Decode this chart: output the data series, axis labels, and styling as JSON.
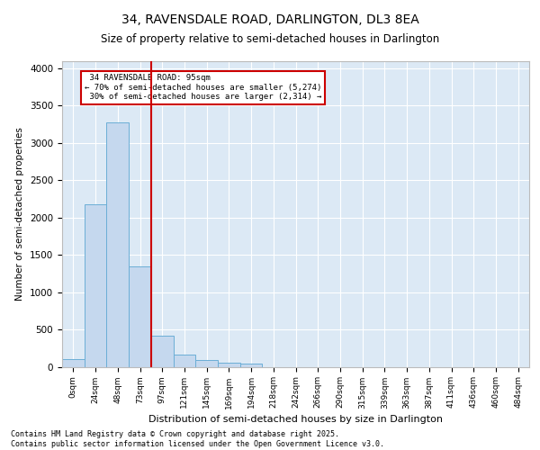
{
  "title": "34, RAVENSDALE ROAD, DARLINGTON, DL3 8EA",
  "subtitle": "Size of property relative to semi-detached houses in Darlington",
  "xlabel": "Distribution of semi-detached houses by size in Darlington",
  "ylabel": "Number of semi-detached properties",
  "bar_labels": [
    "0sqm",
    "24sqm",
    "48sqm",
    "73sqm",
    "97sqm",
    "121sqm",
    "145sqm",
    "169sqm",
    "194sqm",
    "218sqm",
    "242sqm",
    "266sqm",
    "290sqm",
    "315sqm",
    "339sqm",
    "363sqm",
    "387sqm",
    "411sqm",
    "436sqm",
    "460sqm",
    "484sqm"
  ],
  "bar_values": [
    100,
    2175,
    3280,
    1340,
    415,
    160,
    90,
    55,
    40,
    0,
    0,
    0,
    0,
    0,
    0,
    0,
    0,
    0,
    0,
    0,
    0
  ],
  "bar_color": "#c5d8ee",
  "bar_edge_color": "#6baed6",
  "property_label": "34 RAVENSDALE ROAD: 95sqm",
  "ann_line2": "← 70% of semi-detached houses are smaller (5,274)",
  "ann_line3": "30% of semi-detached houses are larger (2,314) →",
  "red_line_color": "#cc0000",
  "annotation_box_color": "#cc0000",
  "ylim": [
    0,
    4100
  ],
  "yticks": [
    0,
    500,
    1000,
    1500,
    2000,
    2500,
    3000,
    3500,
    4000
  ],
  "background_color": "#dce9f5",
  "footer_line1": "Contains HM Land Registry data © Crown copyright and database right 2025.",
  "footer_line2": "Contains public sector information licensed under the Open Government Licence v3.0."
}
